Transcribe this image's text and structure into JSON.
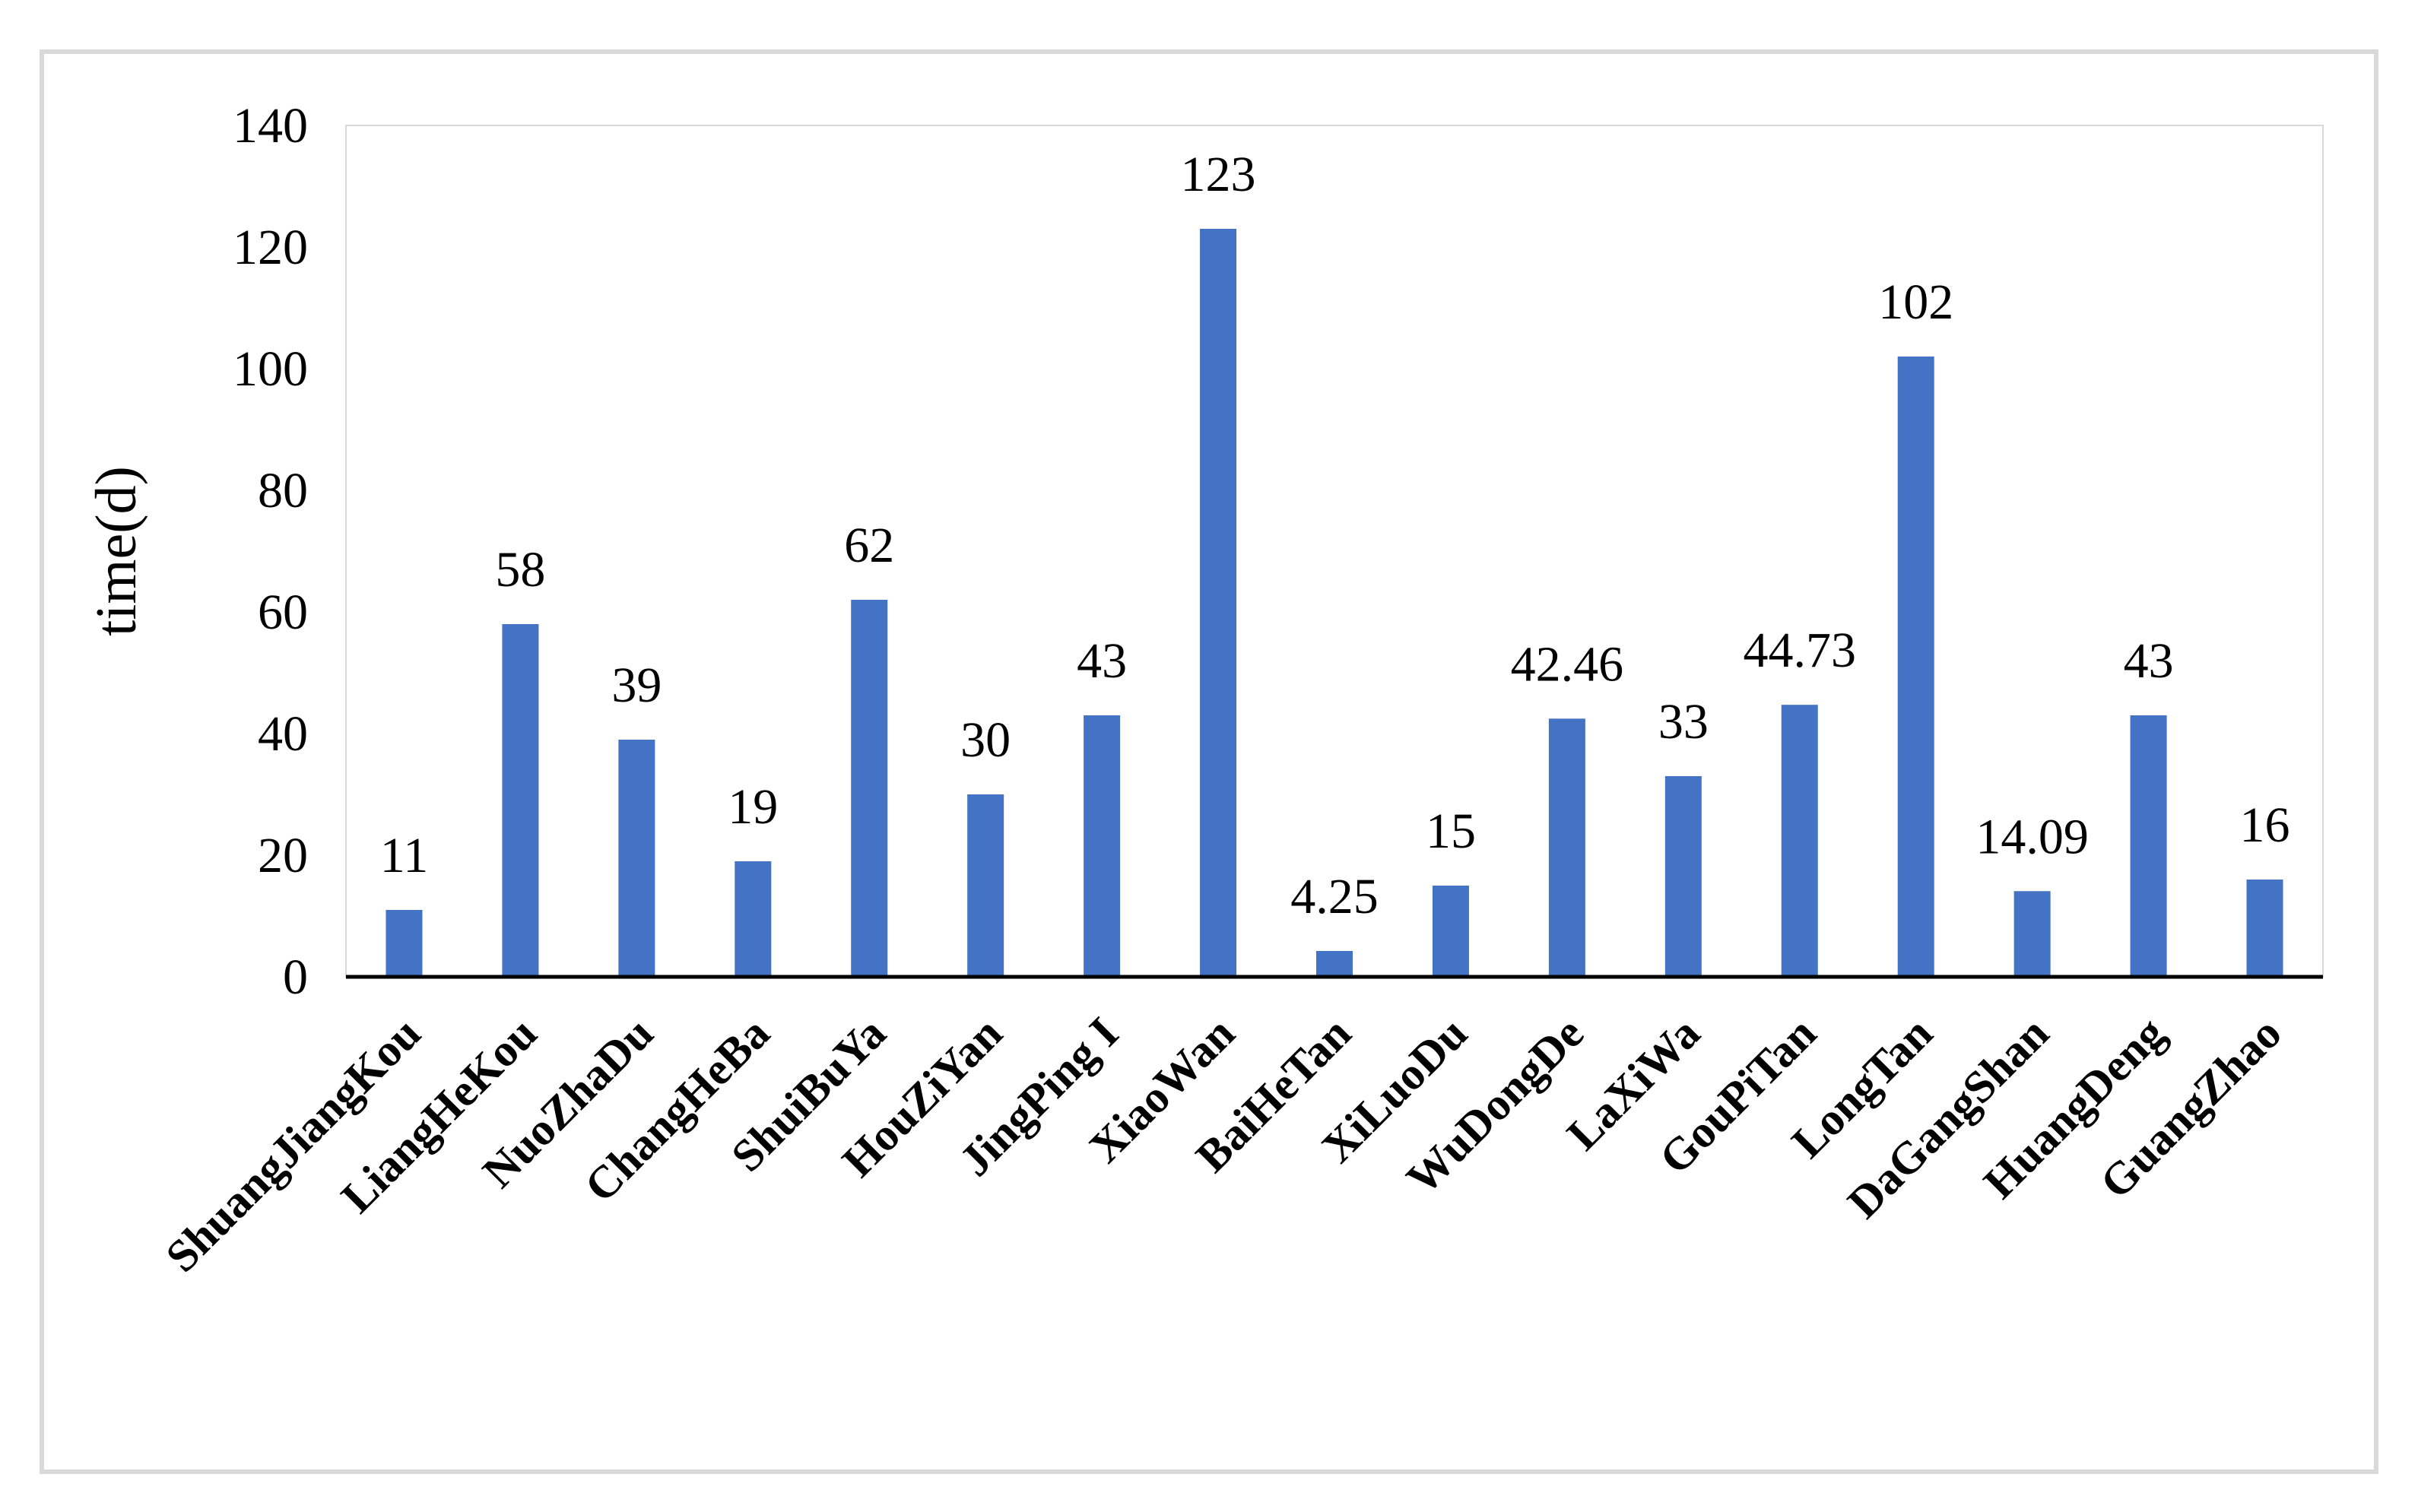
{
  "chart_data": {
    "type": "bar",
    "categories": [
      "ShuangJiangKou",
      "LiangHeKou",
      "NuoZhaDu",
      "ChangHeBa",
      "ShuiBuYa",
      "HouZiYan",
      "JingPing I",
      "XiaoWan",
      "BaiHeTan",
      "XiLuoDu",
      "WuDongDe",
      "LaXiWa",
      "GouPiTan",
      "LongTan",
      "DaGangShan",
      "HuangDeng",
      "GuangZhao"
    ],
    "values": [
      11,
      58,
      39,
      19,
      62,
      30,
      43,
      123,
      4.25,
      15,
      42.46,
      33,
      44.73,
      102,
      14.09,
      43,
      16
    ],
    "value_labels": [
      "11",
      "58",
      "39",
      "19",
      "62",
      "30",
      "43",
      "123",
      "4.25",
      "15",
      "42.46",
      "33",
      "44.73",
      "102",
      "14.09",
      "43",
      "16"
    ],
    "title": "",
    "xlabel": "",
    "ylabel": "time(d)",
    "ylim": [
      0,
      140
    ],
    "yticks": [
      0,
      20,
      40,
      60,
      80,
      100,
      120,
      140
    ],
    "grid": false,
    "legend": "none",
    "bar_color": "#4472c4",
    "category_label_rotation_deg": -45
  }
}
